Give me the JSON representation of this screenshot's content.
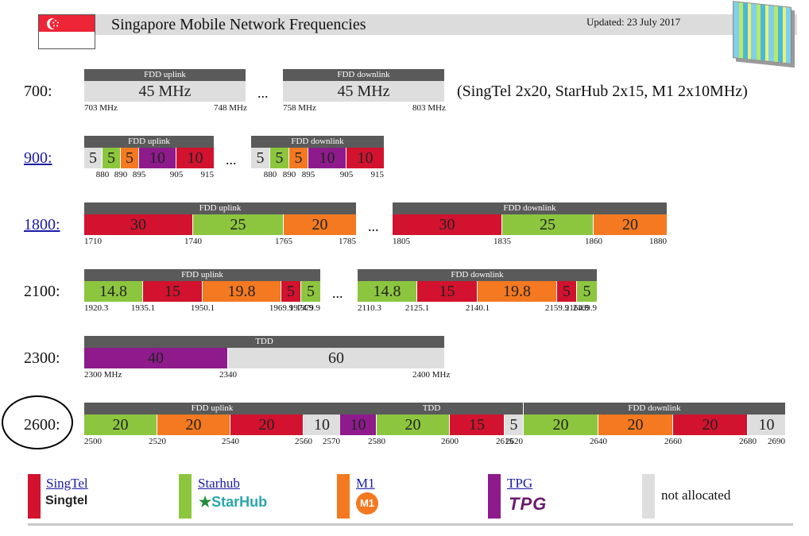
{
  "colors": {
    "singtel": "#d2122e",
    "starhub": "#8cc63f",
    "m1": "#f47920",
    "tpg": "#8e1a8c",
    "unallocated": "#dedede",
    "header": "#5a5a5a"
  },
  "header": {
    "title": "Singapore Mobile Network Frequencies",
    "updated": "Updated: 23 July 2017",
    "flag_icon": "singapore-flag-icon",
    "antenna_icon": "antenna-image-icon"
  },
  "bands": [
    {
      "label": "700:",
      "link": false,
      "ellipsis": "...",
      "note": "(SingTel 2x20, StarHub 2x15, M1 2x10MHz)",
      "blocks": [
        {
          "header": "FDD uplink",
          "segments": [
            {
              "text": "45 MHz",
              "op": "unallocated",
              "mhz": 45
            }
          ],
          "ticks": [
            "703 MHz",
            "748 MHz"
          ]
        },
        {
          "header": "FDD downlink",
          "segments": [
            {
              "text": "45 MHz",
              "op": "unallocated",
              "mhz": 45
            }
          ],
          "ticks": [
            "758 MHz",
            "803 MHz"
          ]
        }
      ]
    },
    {
      "label": "900:",
      "link": true,
      "ellipsis": "...",
      "blocks": [
        {
          "header": "FDD uplink",
          "segments": [
            {
              "text": "5",
              "op": "unallocated",
              "mhz": 5
            },
            {
              "text": "5",
              "op": "starhub",
              "mhz": 5
            },
            {
              "text": "5",
              "op": "m1",
              "mhz": 5
            },
            {
              "text": "10",
              "op": "tpg",
              "mhz": 10
            },
            {
              "text": "10",
              "op": "singtel",
              "mhz": 10
            }
          ],
          "ticks": [
            "880",
            "890",
            "895",
            "905",
            "915"
          ]
        },
        {
          "header": "FDD downlink",
          "segments": [
            {
              "text": "5",
              "op": "unallocated",
              "mhz": 5
            },
            {
              "text": "5",
              "op": "starhub",
              "mhz": 5
            },
            {
              "text": "5",
              "op": "m1",
              "mhz": 5
            },
            {
              "text": "10",
              "op": "tpg",
              "mhz": 10
            },
            {
              "text": "10",
              "op": "singtel",
              "mhz": 10
            }
          ],
          "ticks": [
            "880",
            "890",
            "895",
            "905",
            "915"
          ]
        }
      ]
    },
    {
      "label": "1800:",
      "link": true,
      "ellipsis": "...",
      "blocks": [
        {
          "header": "FDD uplink",
          "segments": [
            {
              "text": "30",
              "op": "singtel",
              "mhz": 30
            },
            {
              "text": "25",
              "op": "starhub",
              "mhz": 25
            },
            {
              "text": "20",
              "op": "m1",
              "mhz": 20
            }
          ],
          "ticks": [
            "1710",
            "1740",
            "1765",
            "1785"
          ]
        },
        {
          "header": "FDD downlink",
          "segments": [
            {
              "text": "30",
              "op": "singtel",
              "mhz": 30
            },
            {
              "text": "25",
              "op": "starhub",
              "mhz": 25
            },
            {
              "text": "20",
              "op": "m1",
              "mhz": 20
            }
          ],
          "ticks": [
            "1805",
            "1835",
            "1860",
            "1880"
          ]
        }
      ]
    },
    {
      "label": "2100:",
      "link": false,
      "ellipsis": "...",
      "blocks": [
        {
          "header": "FDD uplink",
          "segments": [
            {
              "text": "14.8",
              "op": "starhub",
              "mhz": 14.8
            },
            {
              "text": "15",
              "op": "singtel",
              "mhz": 15
            },
            {
              "text": "19.8",
              "op": "m1",
              "mhz": 19.8
            },
            {
              "text": "5",
              "op": "singtel",
              "mhz": 5
            },
            {
              "text": "5",
              "op": "starhub",
              "mhz": 5
            }
          ],
          "ticks": [
            "1920.3",
            "1935.1",
            "1950.1",
            "1969.9",
            "1974.9",
            "1979.9"
          ]
        },
        {
          "header": "FDD downlink",
          "segments": [
            {
              "text": "14.8",
              "op": "starhub",
              "mhz": 14.8
            },
            {
              "text": "15",
              "op": "singtel",
              "mhz": 15
            },
            {
              "text": "19.8",
              "op": "m1",
              "mhz": 19.8
            },
            {
              "text": "5",
              "op": "singtel",
              "mhz": 5
            },
            {
              "text": "5",
              "op": "starhub",
              "mhz": 5
            }
          ],
          "ticks": [
            "2110.3",
            "2125.1",
            "2140.1",
            "2159.9",
            "2164.9",
            "2169.9"
          ]
        }
      ]
    },
    {
      "label": "2300:",
      "link": false,
      "blocks": [
        {
          "header": "TDD",
          "segments": [
            {
              "text": "40",
              "op": "tpg",
              "mhz": 40
            },
            {
              "text": "60",
              "op": "unallocated",
              "mhz": 60
            }
          ],
          "ticks": [
            "2300 MHz",
            "2340",
            "2400 MHz"
          ]
        }
      ]
    },
    {
      "label": "2600:",
      "link": false,
      "circled": true,
      "blocks": [
        {
          "header": "FDD uplink",
          "segments": [
            {
              "text": "20",
              "op": "starhub",
              "mhz": 20
            },
            {
              "text": "20",
              "op": "m1",
              "mhz": 20
            },
            {
              "text": "20",
              "op": "singtel",
              "mhz": 20
            },
            {
              "text": "10",
              "op": "unallocated",
              "mhz": 10
            }
          ],
          "ticks": [
            "2500",
            "2520",
            "2540",
            "2560",
            "2570"
          ]
        },
        {
          "header": "TDD",
          "segments": [
            {
              "text": "10",
              "op": "tpg",
              "mhz": 10
            },
            {
              "text": "20",
              "op": "starhub",
              "mhz": 20
            },
            {
              "text": "15",
              "op": "singtel",
              "mhz": 15
            },
            {
              "text": "5",
              "op": "unallocated",
              "mhz": 5
            }
          ],
          "ticks": [
            "2580",
            "2600",
            "2615",
            "2620"
          ]
        },
        {
          "header": "FDD downlink",
          "segments": [
            {
              "text": "20",
              "op": "starhub",
              "mhz": 20
            },
            {
              "text": "20",
              "op": "m1",
              "mhz": 20
            },
            {
              "text": "20",
              "op": "singtel",
              "mhz": 20
            },
            {
              "text": "10",
              "op": "unallocated",
              "mhz": 10
            }
          ],
          "ticks": [
            "2640",
            "2660",
            "2680",
            "2690"
          ]
        }
      ]
    }
  ],
  "legend": [
    {
      "name": "SingTel",
      "op": "singtel",
      "link": true,
      "logo_text": "Singtel",
      "logo_icon": "singtel-logo-icon"
    },
    {
      "name": "Starhub",
      "op": "starhub",
      "link": true,
      "logo_text": "StarHub",
      "logo_icon": "starhub-logo-icon"
    },
    {
      "name": "M1",
      "op": "m1",
      "link": true,
      "logo_text": "M1",
      "logo_icon": "m1-logo-icon"
    },
    {
      "name": "TPG",
      "op": "tpg",
      "link": true,
      "logo_text": "TPG",
      "logo_icon": "tpg-logo-icon"
    },
    {
      "name": "not allocated",
      "op": "unallocated",
      "link": false
    }
  ]
}
